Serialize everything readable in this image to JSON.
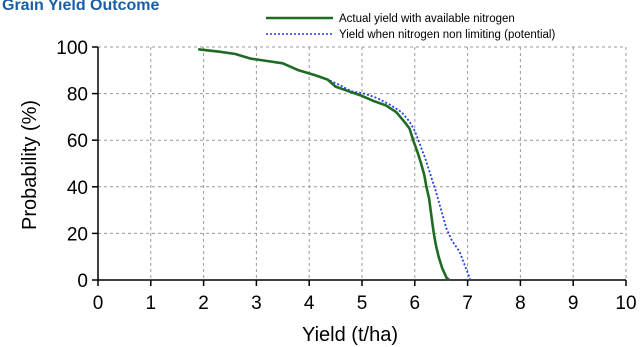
{
  "chart_data": {
    "type": "line",
    "title": "Grain Yield Outcome",
    "xlabel": "Yield (t/ha)",
    "ylabel": "Probability (%)",
    "xlim": [
      0,
      10
    ],
    "ylim": [
      0,
      100
    ],
    "xticks": [
      "0",
      "1",
      "2",
      "3",
      "4",
      "5",
      "6",
      "7",
      "8",
      "9",
      "10"
    ],
    "yticks": [
      "0",
      "20",
      "40",
      "60",
      "80",
      "100"
    ],
    "grid": true,
    "legend_position": "top-right",
    "series": [
      {
        "name": "Actual yield with available nitrogen",
        "color": "#1f6b24",
        "style": "solid",
        "points": [
          [
            1.9,
            99
          ],
          [
            2.3,
            98
          ],
          [
            2.6,
            97
          ],
          [
            2.9,
            95
          ],
          [
            3.2,
            94
          ],
          [
            3.5,
            93
          ],
          [
            3.8,
            90
          ],
          [
            4.1,
            88
          ],
          [
            4.35,
            86
          ],
          [
            4.5,
            83
          ],
          [
            4.75,
            81
          ],
          [
            5.0,
            79
          ],
          [
            5.2,
            77
          ],
          [
            5.45,
            75
          ],
          [
            5.65,
            72
          ],
          [
            5.8,
            68
          ],
          [
            5.9,
            65
          ],
          [
            5.97,
            60
          ],
          [
            6.05,
            55
          ],
          [
            6.12,
            50
          ],
          [
            6.18,
            45
          ],
          [
            6.22,
            40
          ],
          [
            6.27,
            35
          ],
          [
            6.3,
            30
          ],
          [
            6.33,
            25
          ],
          [
            6.36,
            20
          ],
          [
            6.4,
            15
          ],
          [
            6.45,
            10
          ],
          [
            6.52,
            5
          ],
          [
            6.6,
            1
          ],
          [
            6.65,
            0
          ]
        ]
      },
      {
        "name": "Yield when nitrogen non limiting (potential)",
        "color": "#1f3fe0",
        "style": "dotted",
        "points": [
          [
            1.9,
            99
          ],
          [
            2.3,
            98
          ],
          [
            2.6,
            97
          ],
          [
            2.9,
            95
          ],
          [
            3.2,
            94
          ],
          [
            3.5,
            93
          ],
          [
            3.8,
            90
          ],
          [
            4.1,
            88
          ],
          [
            4.35,
            86
          ],
          [
            4.55,
            84
          ],
          [
            4.8,
            81
          ],
          [
            5.05,
            80
          ],
          [
            5.3,
            78
          ],
          [
            5.55,
            75
          ],
          [
            5.75,
            72
          ],
          [
            5.9,
            68
          ],
          [
            6.0,
            64
          ],
          [
            6.1,
            58
          ],
          [
            6.2,
            52
          ],
          [
            6.3,
            45
          ],
          [
            6.4,
            38
          ],
          [
            6.5,
            30
          ],
          [
            6.6,
            22
          ],
          [
            6.7,
            17
          ],
          [
            6.85,
            12
          ],
          [
            6.95,
            6
          ],
          [
            7.02,
            2
          ],
          [
            7.05,
            0
          ]
        ]
      }
    ]
  }
}
